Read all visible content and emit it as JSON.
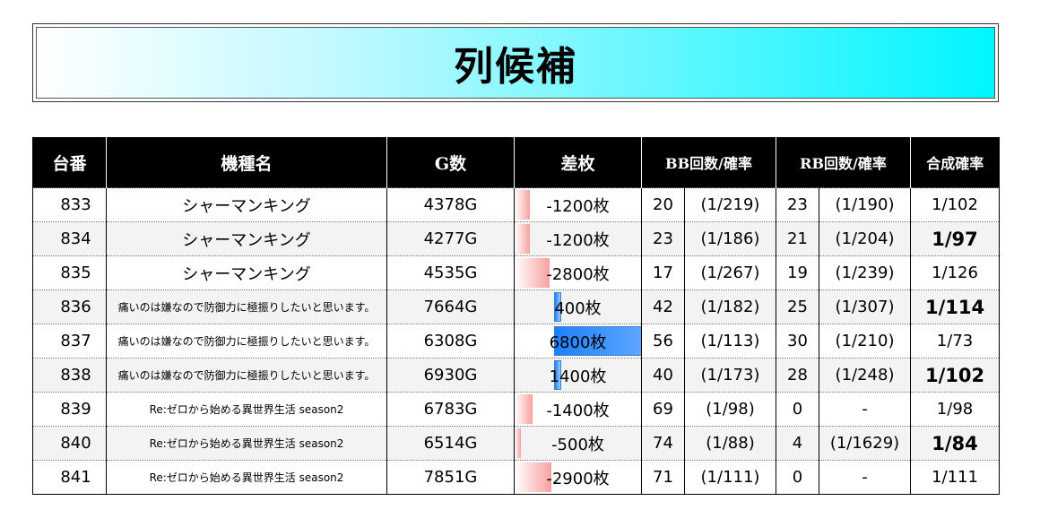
{
  "title": "列候補",
  "headers": {
    "number": "台番",
    "machine": "機種名",
    "games": "G数",
    "diff": "差枚",
    "bb": "BB回数/確率",
    "rb": "RB回数/確率",
    "combined": "合成確率"
  },
  "colors": {
    "title_gradient_end": "#00f6ff",
    "negative_bar": "#f8a0a0",
    "positive_bar": "#1e80ff",
    "header_bg": "#000000"
  },
  "rows": [
    {
      "number": "833",
      "machine": "シャーマンキング",
      "games": "4378G",
      "diff": "-1200枚",
      "diff_value": -1200,
      "bb_count": "20",
      "bb_rate": "(1/219)",
      "rb_count": "23",
      "rb_rate": "(1/190)",
      "combined": "1/102",
      "combined_bold": false
    },
    {
      "number": "834",
      "machine": "シャーマンキング",
      "games": "4277G",
      "diff": "-1200枚",
      "diff_value": -1200,
      "bb_count": "23",
      "bb_rate": "(1/186)",
      "rb_count": "21",
      "rb_rate": "(1/204)",
      "combined": "1/97",
      "combined_bold": true
    },
    {
      "number": "835",
      "machine": "シャーマンキング",
      "games": "4535G",
      "diff": "-2800枚",
      "diff_value": -2800,
      "bb_count": "17",
      "bb_rate": "(1/267)",
      "rb_count": "19",
      "rb_rate": "(1/239)",
      "combined": "1/126",
      "combined_bold": false
    },
    {
      "number": "836",
      "machine": "痛いのは嫌なので防御力に極振りしたいと思います。",
      "games": "7664G",
      "diff": "400枚",
      "diff_value": 400,
      "bb_count": "42",
      "bb_rate": "(1/182)",
      "rb_count": "25",
      "rb_rate": "(1/307)",
      "combined": "1/114",
      "combined_bold": true
    },
    {
      "number": "837",
      "machine": "痛いのは嫌なので防御力に極振りしたいと思います。",
      "games": "6308G",
      "diff": "6800枚",
      "diff_value": 6800,
      "bb_count": "56",
      "bb_rate": "(1/113)",
      "rb_count": "30",
      "rb_rate": "(1/210)",
      "combined": "1/73",
      "combined_bold": false
    },
    {
      "number": "838",
      "machine": "痛いのは嫌なので防御力に極振りしたいと思います。",
      "games": "6930G",
      "diff": "1400枚",
      "diff_value": 1400,
      "bb_count": "40",
      "bb_rate": "(1/173)",
      "rb_count": "28",
      "rb_rate": "(1/248)",
      "combined": "1/102",
      "combined_bold": true
    },
    {
      "number": "839",
      "machine": "Re:ゼロから始める異世界生活 season2",
      "games": "6783G",
      "diff": "-1400枚",
      "diff_value": -1400,
      "bb_count": "69",
      "bb_rate": "(1/98)",
      "rb_count": "0",
      "rb_rate": "-",
      "combined": "1/98",
      "combined_bold": false
    },
    {
      "number": "840",
      "machine": "Re:ゼロから始める異世界生活 season2",
      "games": "6514G",
      "diff": "-500枚",
      "diff_value": -500,
      "bb_count": "74",
      "bb_rate": "(1/88)",
      "rb_count": "4",
      "rb_rate": "(1/1629)",
      "combined": "1/84",
      "combined_bold": true
    },
    {
      "number": "841",
      "machine": "Re:ゼロから始める異世界生活 season2",
      "games": "7851G",
      "diff": "-2900枚",
      "diff_value": -2900,
      "bb_count": "71",
      "bb_rate": "(1/111)",
      "rb_count": "0",
      "rb_rate": "-",
      "combined": "1/111",
      "combined_bold": false
    }
  ]
}
